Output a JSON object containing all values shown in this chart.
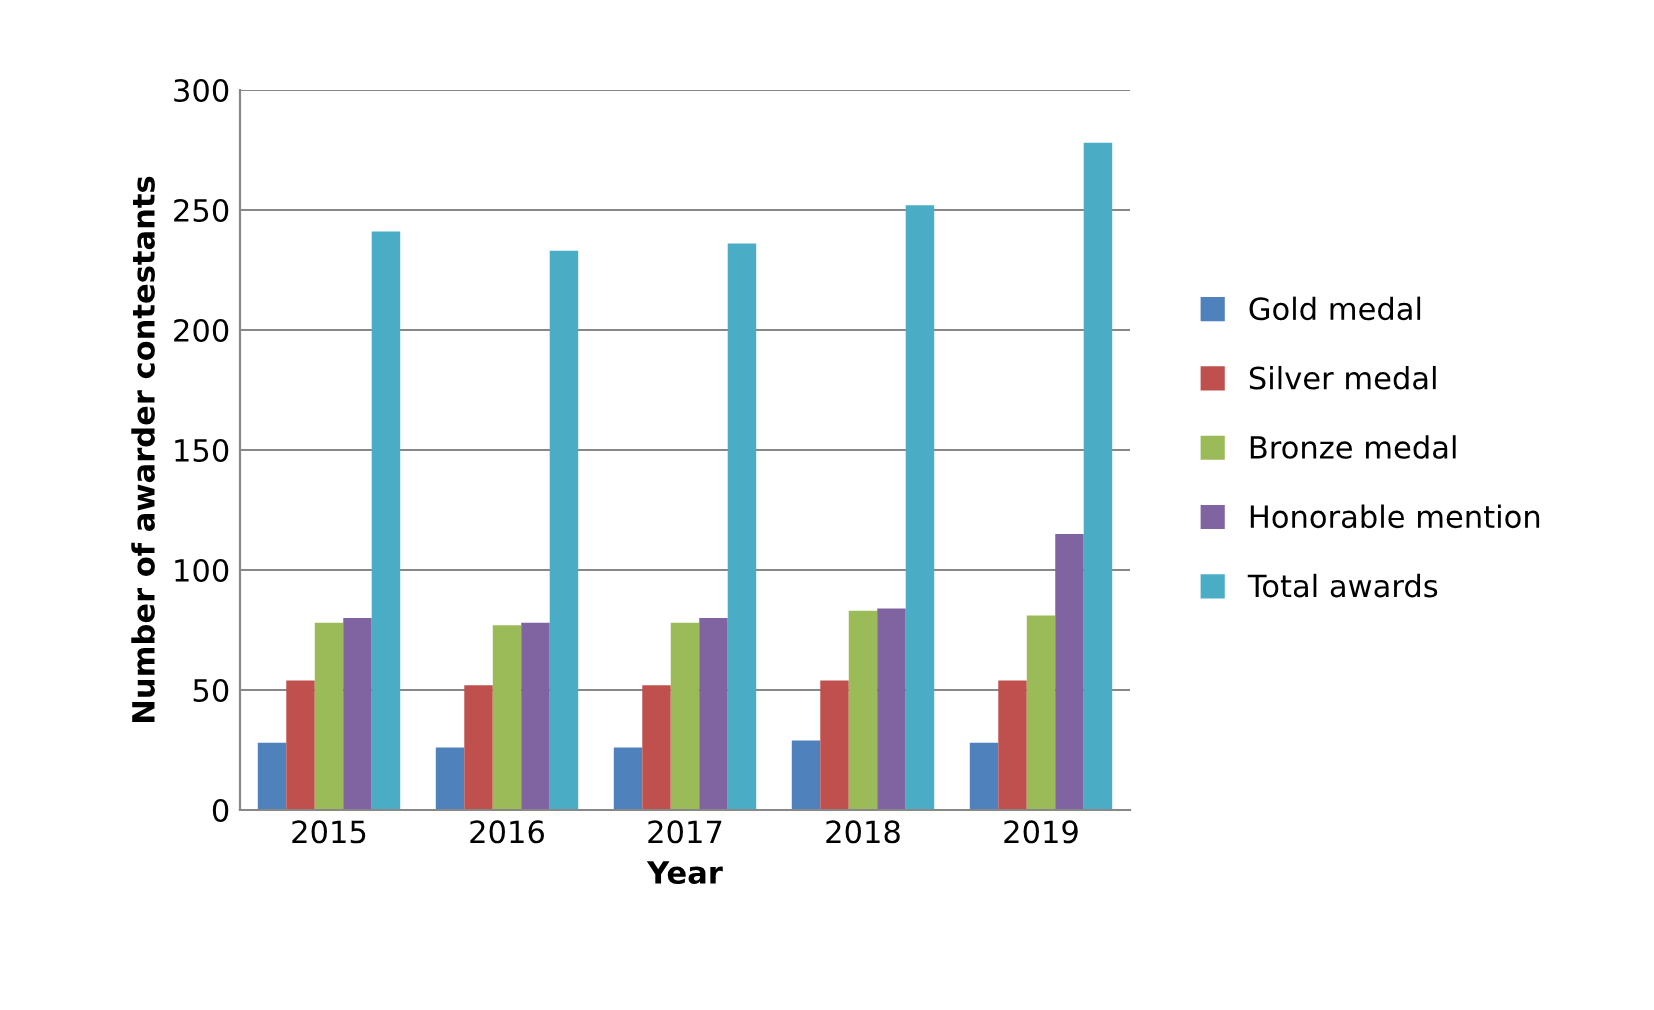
{
  "chart_data": {
    "type": "bar",
    "xlabel": "Year",
    "ylabel": "Number of awarder contestants",
    "categories": [
      "2015",
      "2016",
      "2017",
      "2018",
      "2019"
    ],
    "series": [
      {
        "name": "Gold medal",
        "color": "#4f81bd",
        "values": [
          28,
          26,
          26,
          29,
          28
        ]
      },
      {
        "name": "Silver medal",
        "color": "#c0504d",
        "values": [
          54,
          52,
          52,
          54,
          54
        ]
      },
      {
        "name": "Bronze medal",
        "color": "#9bbb59",
        "values": [
          78,
          77,
          78,
          83,
          81
        ]
      },
      {
        "name": "Honorable mention",
        "color": "#8064a2",
        "values": [
          80,
          78,
          80,
          84,
          115
        ]
      },
      {
        "name": "Total awards",
        "color": "#4bacc6",
        "values": [
          241,
          233,
          236,
          252,
          278
        ]
      }
    ],
    "ylim": [
      0,
      300
    ],
    "yticks": [
      0,
      50,
      100,
      150,
      200,
      250,
      300
    ],
    "grid": "y",
    "legend": "right"
  }
}
